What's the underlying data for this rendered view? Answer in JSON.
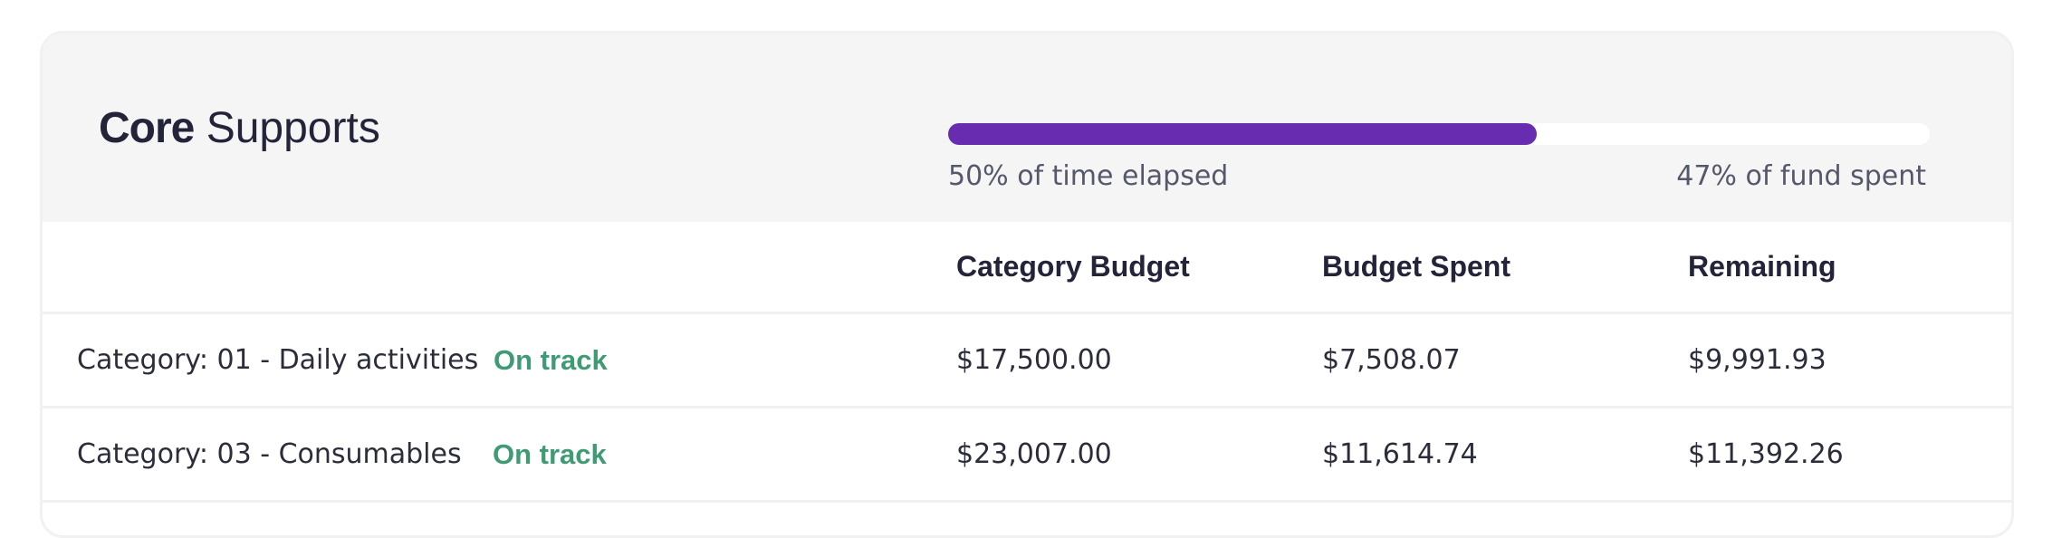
{
  "card": {
    "title_bold": "Core",
    "title_rest": "Supports"
  },
  "progress": {
    "fill_fraction": 0.6,
    "fill_color": "#672cb0",
    "time_label": "50% of time elapsed",
    "fund_label": "47% of fund spent"
  },
  "table": {
    "headers": {
      "name": "",
      "budget": "Category Budget",
      "spent": "Budget Spent",
      "remaining": "Remaining"
    },
    "rows": [
      {
        "category": "Category: 01 - Daily activities",
        "status": "On track",
        "budget": "$17,500.00",
        "spent": "$7,508.07",
        "remaining": "$9,991.93"
      },
      {
        "category": "Category: 03 - Consumables",
        "status": "On track",
        "budget": "$23,007.00",
        "spent": "$11,614.74",
        "remaining": "$11,392.26"
      }
    ]
  },
  "colors": {
    "accent": "#672cb0",
    "status_ok": "#3f9b73",
    "header_bg": "#f5f5f5"
  }
}
